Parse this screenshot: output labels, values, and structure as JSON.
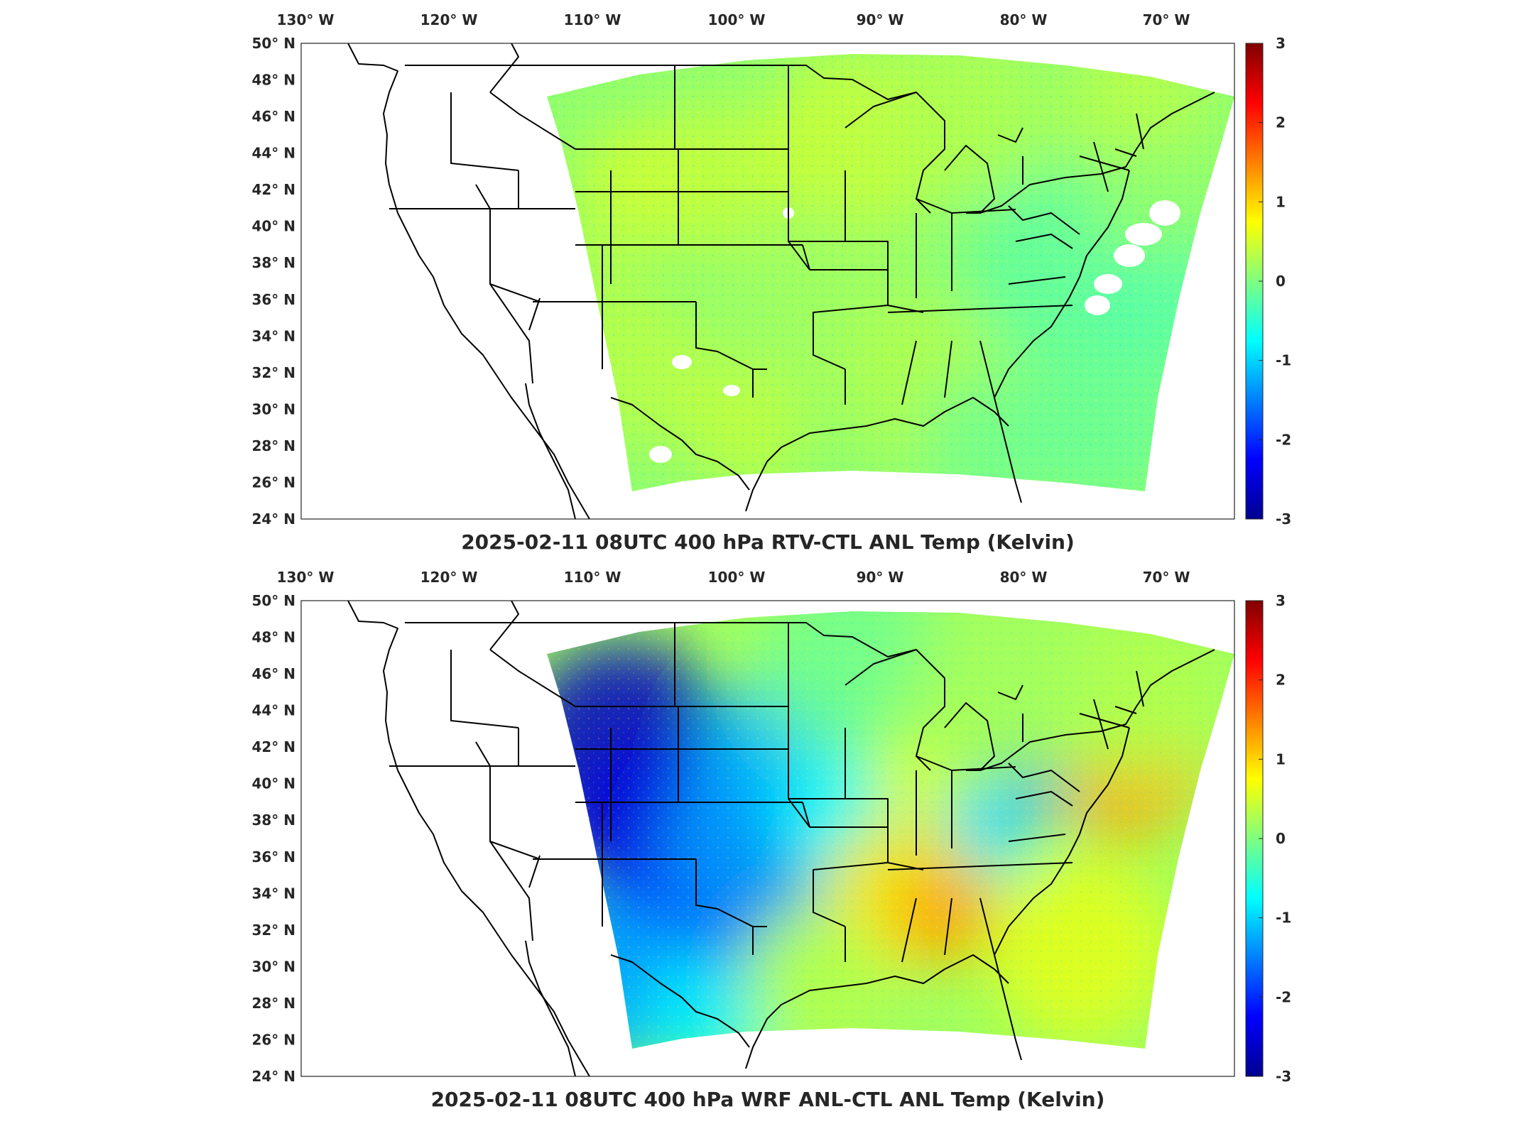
{
  "panels": [
    {
      "title": "2025-02-11 08UTC 400 hPa RTV-CTL ANL Temp (Kelvin)",
      "field": "rtv",
      "lon_labels": [
        "130° W",
        "120° W",
        "110° W",
        "100° W",
        "90° W",
        "80° W",
        "70° W"
      ],
      "lat_labels": [
        "50° N",
        "48° N",
        "46° N",
        "44° N",
        "42° N",
        "40° N",
        "38° N",
        "36° N",
        "34° N",
        "32° N",
        "30° N",
        "28° N",
        "26° N",
        "24° N"
      ],
      "colorbar": {
        "min": -3,
        "max": 3,
        "ticks": [
          "3",
          "2",
          "1",
          "0",
          "-1",
          "-2",
          "-3"
        ]
      }
    },
    {
      "title": "2025-02-11 08UTC 400 hPa WRF ANL-CTL ANL Temp (Kelvin)",
      "field": "wrf",
      "lon_labels": [
        "130° W",
        "120° W",
        "110° W",
        "100° W",
        "90° W",
        "80° W",
        "70° W"
      ],
      "lat_labels": [
        "50° N",
        "48° N",
        "46° N",
        "44° N",
        "42° N",
        "40° N",
        "38° N",
        "36° N",
        "34° N",
        "32° N",
        "30° N",
        "28° N",
        "26° N",
        "24° N"
      ],
      "colorbar": {
        "min": -3,
        "max": 3,
        "ticks": [
          "3",
          "2",
          "1",
          "0",
          "-1",
          "-2",
          "-3"
        ]
      }
    }
  ],
  "colormap": "jet",
  "colors": {
    "frame": "#262626",
    "background": "#ffffff"
  }
}
